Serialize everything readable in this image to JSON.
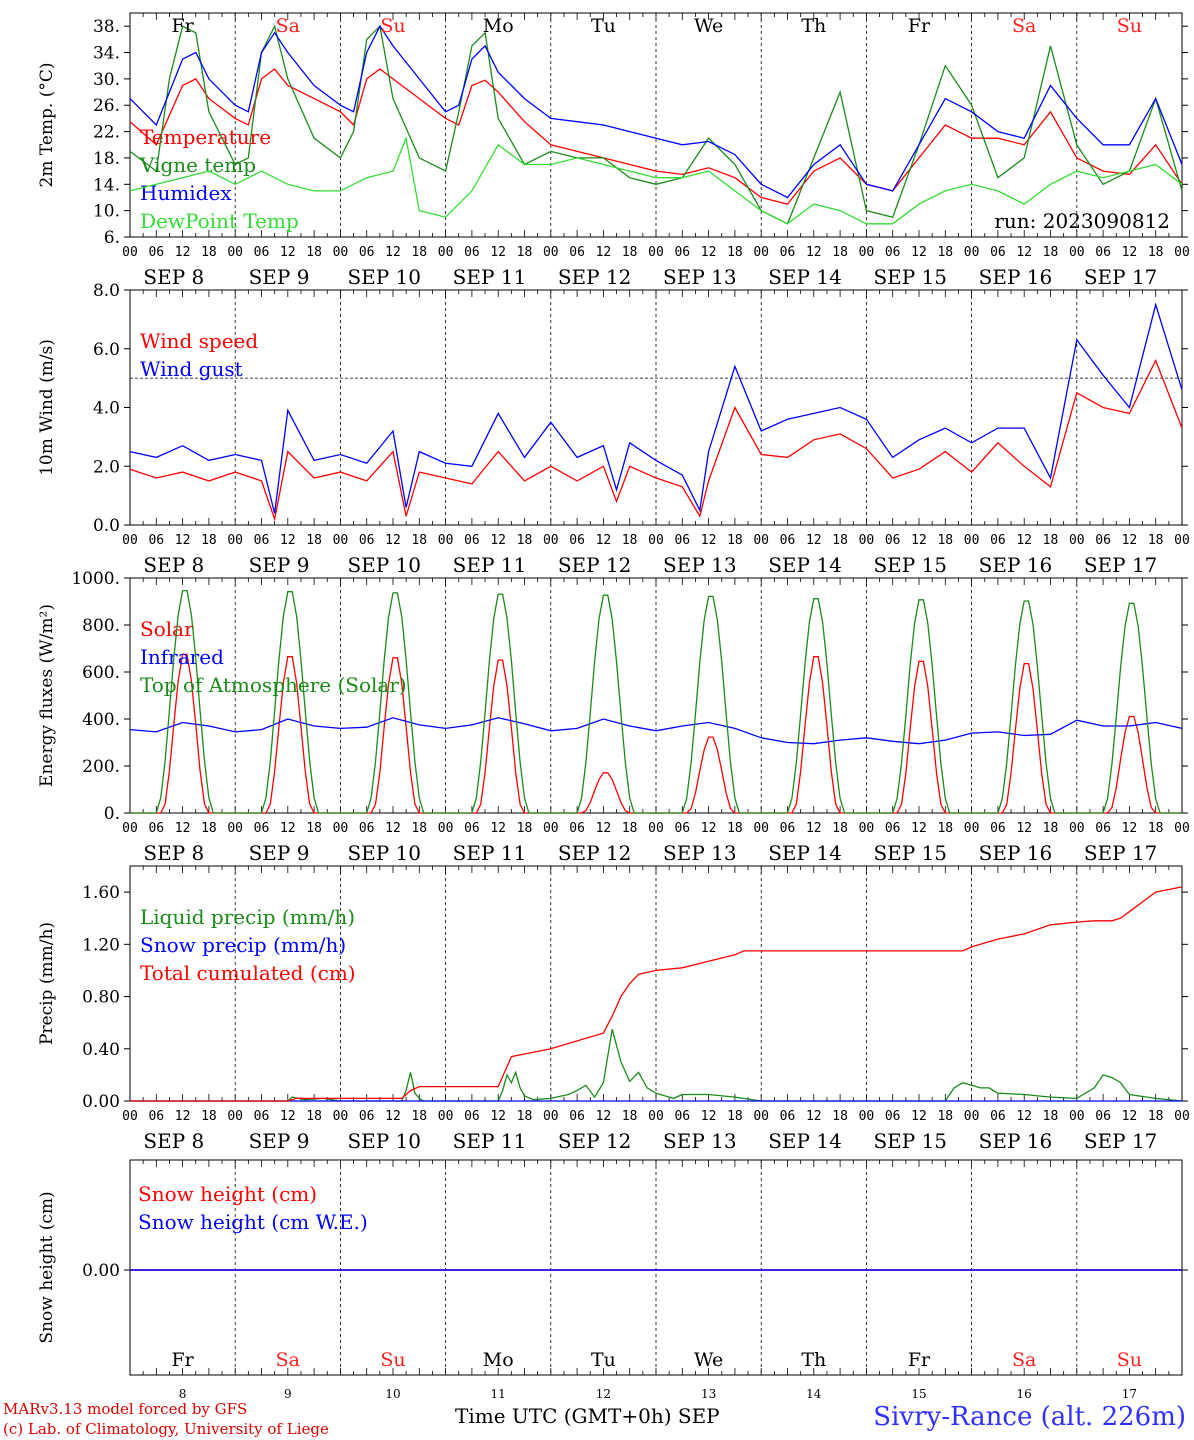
{
  "run_label": "run: 2023090812",
  "hour_ticks": [
    "00",
    "06",
    "12",
    "18"
  ],
  "final_tick": "00",
  "dates": [
    "SEP  8",
    "SEP  9",
    "SEP 10",
    "SEP 11",
    "SEP 12",
    "SEP 13",
    "SEP 14",
    "SEP 15",
    "SEP 16",
    "SEP 17"
  ],
  "weekdays": [
    "Fr",
    "Sa",
    "Su",
    "Mo",
    "Tu",
    "We",
    "Th",
    "Fr",
    "Sa",
    "Su"
  ],
  "weekend_color": "#ff2020",
  "weekday_color": "#000000",
  "day_numbers": [
    "8",
    "9",
    "10",
    "11",
    "12",
    "13",
    "14",
    "15",
    "16",
    "17"
  ],
  "footer": {
    "credit1": "MARv3.13 model forced by GFS",
    "credit2": "(c) Lab. of Climatology, University of Liege",
    "axis_title": "Time UTC (GMT+0h) SEP",
    "site": "Sivry-Rance (alt. 226m)"
  },
  "chart_data": [
    {
      "type": "line",
      "ylabel": "2m Temp. (°C)",
      "ylim": [
        6,
        40
      ],
      "yticks": [
        "6.",
        "10.",
        "14.",
        "18.",
        "22.",
        "26.",
        "30.",
        "34.",
        "38."
      ],
      "x_unit": "hours since SEP 8 00 UTC",
      "series": [
        {
          "name": "Temperature",
          "color": "#ff0000",
          "x": [
            0,
            6,
            12,
            15,
            18,
            24,
            27,
            30,
            33,
            36,
            42,
            48,
            51,
            54,
            57,
            60,
            66,
            72,
            75,
            78,
            81,
            84,
            90,
            96,
            102,
            108,
            114,
            120,
            126,
            132,
            138,
            144,
            150,
            156,
            162,
            168,
            174,
            180,
            186,
            192,
            198,
            204,
            210,
            216,
            222,
            228,
            234,
            240
          ],
          "y": [
            23.5,
            20,
            29,
            30,
            27,
            24,
            23,
            30,
            31.5,
            29,
            27,
            25,
            23,
            30,
            31.5,
            30,
            27,
            24,
            23,
            29,
            29.8,
            28,
            23.5,
            20,
            19,
            18,
            17,
            16,
            15.5,
            16.5,
            15,
            12,
            11,
            16,
            18,
            14,
            13,
            18,
            23,
            21,
            21,
            20,
            25,
            18,
            16,
            15.5,
            20,
            14
          ]
        },
        {
          "name": "Vigne temp",
          "color": "#1a8a1a",
          "x": [
            0,
            6,
            9,
            12,
            15,
            18,
            24,
            27,
            30,
            33,
            36,
            42,
            48,
            51,
            54,
            57,
            60,
            66,
            72,
            75,
            78,
            81,
            84,
            90,
            96,
            102,
            108,
            114,
            120,
            126,
            132,
            138,
            144,
            150,
            156,
            162,
            168,
            174,
            180,
            186,
            192,
            198,
            204,
            210,
            216,
            222,
            228,
            234,
            240
          ],
          "y": [
            19,
            16,
            30,
            38,
            37,
            25,
            17,
            18,
            34,
            38,
            30,
            21,
            18,
            22,
            36,
            38,
            27,
            18,
            16,
            25,
            35,
            37,
            24,
            17,
            19,
            18,
            18,
            15,
            14,
            15,
            21,
            17,
            10,
            8,
            18,
            28,
            10,
            9,
            20,
            32,
            26,
            15,
            18,
            35,
            20,
            14,
            16,
            27,
            13
          ]
        },
        {
          "name": "Humidex",
          "color": "#0000ff",
          "x": [
            0,
            6,
            12,
            15,
            18,
            24,
            27,
            30,
            33,
            36,
            42,
            48,
            51,
            54,
            57,
            60,
            66,
            72,
            75,
            78,
            81,
            84,
            90,
            96,
            102,
            108,
            114,
            120,
            126,
            132,
            138,
            144,
            150,
            156,
            162,
            168,
            174,
            180,
            186,
            192,
            198,
            204,
            210,
            216,
            222,
            228,
            234,
            240
          ],
          "y": [
            27,
            23,
            33,
            34,
            30,
            26,
            25,
            34,
            37,
            34,
            29,
            26,
            25,
            34,
            38,
            35,
            30,
            25,
            26,
            33,
            35,
            31,
            27,
            24,
            23.5,
            23,
            22,
            21,
            20,
            20.5,
            18.5,
            14,
            12,
            17,
            20,
            14,
            13,
            20,
            27,
            25,
            22,
            21,
            29,
            24,
            20,
            20,
            27,
            17
          ]
        },
        {
          "name": "DewPoint Temp",
          "color": "#33dd33",
          "x": [
            0,
            6,
            12,
            18,
            24,
            30,
            36,
            42,
            48,
            54,
            60,
            63,
            66,
            72,
            78,
            84,
            90,
            96,
            102,
            108,
            114,
            120,
            126,
            132,
            138,
            144,
            150,
            156,
            162,
            168,
            174,
            180,
            186,
            192,
            198,
            204,
            210,
            216,
            222,
            228,
            234,
            240
          ],
          "y": [
            13,
            14,
            15,
            16,
            14,
            16,
            14,
            13,
            13,
            15,
            16,
            21,
            10,
            9,
            13,
            20,
            17,
            17,
            18,
            17,
            16,
            15,
            15,
            16,
            13,
            10,
            8,
            11,
            10,
            8,
            8,
            11,
            13,
            14,
            13,
            11,
            14,
            16,
            15,
            16,
            17,
            14
          ]
        }
      ]
    },
    {
      "type": "line",
      "ylabel": "10m Wind (m/s)",
      "ylim": [
        0,
        8
      ],
      "yticks": [
        "0.0",
        "2.0",
        "4.0",
        "6.0",
        "8.0"
      ],
      "reference_line": 5,
      "series": [
        {
          "name": "Wind speed",
          "color": "#ff0000",
          "x": [
            0,
            6,
            12,
            18,
            24,
            30,
            33,
            36,
            42,
            48,
            54,
            60,
            63,
            66,
            72,
            78,
            84,
            90,
            96,
            102,
            108,
            111,
            114,
            120,
            126,
            130,
            132,
            138,
            144,
            150,
            156,
            162,
            168,
            174,
            180,
            186,
            192,
            198,
            204,
            210,
            216,
            222,
            228,
            234,
            240
          ],
          "y": [
            1.9,
            1.6,
            1.8,
            1.5,
            1.8,
            1.5,
            0.2,
            2.5,
            1.6,
            1.8,
            1.5,
            2.5,
            0.3,
            1.8,
            1.6,
            1.4,
            2.5,
            1.5,
            2,
            1.5,
            2,
            0.8,
            2,
            1.6,
            1.3,
            0.3,
            1.5,
            4,
            2.4,
            2.3,
            2.9,
            3.1,
            2.6,
            1.6,
            1.9,
            2.5,
            1.8,
            2.8,
            2,
            1.3,
            4.5,
            4,
            3.8,
            5.6,
            3.3
          ]
        },
        {
          "name": "Wind gust",
          "color": "#0000ff",
          "x": [
            0,
            6,
            12,
            18,
            24,
            30,
            33,
            36,
            42,
            48,
            54,
            60,
            63,
            66,
            72,
            78,
            84,
            90,
            96,
            102,
            108,
            111,
            114,
            120,
            126,
            130,
            132,
            138,
            144,
            150,
            156,
            162,
            168,
            174,
            180,
            186,
            192,
            198,
            204,
            210,
            216,
            222,
            228,
            234,
            240
          ],
          "y": [
            2.5,
            2.3,
            2.7,
            2.2,
            2.4,
            2.2,
            0.4,
            3.9,
            2.2,
            2.4,
            2.1,
            3.2,
            0.6,
            2.5,
            2.1,
            2,
            3.8,
            2.3,
            3.5,
            2.3,
            2.7,
            1.2,
            2.8,
            2.2,
            1.7,
            0.5,
            2.5,
            5.4,
            3.2,
            3.6,
            3.8,
            4,
            3.6,
            2.3,
            2.9,
            3.3,
            2.8,
            3.3,
            3.3,
            1.6,
            6.3,
            5.1,
            4,
            7.5,
            4.6
          ]
        }
      ]
    },
    {
      "type": "line",
      "ylabel": "Energy fluxes (W/m²)",
      "ylim": [
        0,
        1000
      ],
      "yticks": [
        "0.",
        "200.",
        "400.",
        "600.",
        "800.",
        "1000."
      ],
      "series": [
        {
          "name": "Solar",
          "color": "#ff0000",
          "peaks": [
            690,
            680,
            675,
            665,
            175,
            330,
            680,
            660,
            650,
            420
          ]
        },
        {
          "name": "Infrared",
          "color": "#0000ff",
          "x": [
            0,
            6,
            12,
            18,
            24,
            30,
            36,
            42,
            48,
            54,
            60,
            66,
            72,
            78,
            84,
            90,
            96,
            102,
            108,
            114,
            120,
            126,
            132,
            138,
            144,
            150,
            156,
            162,
            168,
            174,
            180,
            186,
            192,
            198,
            204,
            210,
            216,
            222,
            228,
            234,
            240
          ],
          "y": [
            355,
            345,
            385,
            370,
            345,
            355,
            400,
            370,
            360,
            365,
            405,
            375,
            360,
            375,
            405,
            380,
            350,
            360,
            400,
            370,
            350,
            370,
            385,
            360,
            320,
            300,
            295,
            310,
            320,
            305,
            295,
            310,
            340,
            345,
            330,
            335,
            395,
            370,
            370,
            385,
            360
          ]
        },
        {
          "name": "Top of Atmosphere (Solar)",
          "color": "#1a8a1a",
          "peaks": [
            960,
            955,
            950,
            945,
            940,
            935,
            925,
            920,
            915,
            905
          ]
        }
      ]
    },
    {
      "type": "line",
      "ylabel": "Precip (mm/h)",
      "ylim": [
        0,
        1.8
      ],
      "yticks": [
        "0.00",
        "0.40",
        "0.80",
        "1.20",
        "1.60"
      ],
      "series": [
        {
          "name": "Liquid precip (mm/h)",
          "color": "#1a8a1a",
          "x": [
            0,
            36,
            37,
            40,
            44,
            48,
            62,
            63,
            64,
            65,
            66,
            67,
            68,
            84,
            85,
            86,
            87,
            88,
            89,
            90,
            92,
            96,
            100,
            102,
            104,
            106,
            108,
            110,
            112,
            114,
            116,
            118,
            120,
            124,
            126,
            132,
            138,
            144,
            186,
            188,
            190,
            192,
            194,
            196,
            198,
            204,
            210,
            216,
            220,
            222,
            224,
            226,
            228,
            234,
            240
          ],
          "y": [
            0,
            0,
            0.03,
            0.01,
            0.02,
            0,
            0,
            0.08,
            0.22,
            0.06,
            0.02,
            0,
            0,
            0,
            0.08,
            0.2,
            0.14,
            0.22,
            0.1,
            0.04,
            0.01,
            0.02,
            0.05,
            0.08,
            0.12,
            0.03,
            0.14,
            0.55,
            0.3,
            0.15,
            0.22,
            0.1,
            0.06,
            0.02,
            0.05,
            0.05,
            0.03,
            0,
            0,
            0.1,
            0.14,
            0.12,
            0.1,
            0.1,
            0.06,
            0.05,
            0.03,
            0.02,
            0.1,
            0.2,
            0.18,
            0.14,
            0.05,
            0.02,
            0
          ]
        },
        {
          "name": "Snow precip (mm/h)",
          "color": "#0000ff",
          "x": [
            0,
            240
          ],
          "y": [
            0,
            0
          ]
        },
        {
          "name": "Total cumulated (cm)",
          "color": "#ff0000",
          "x": [
            0,
            36,
            38,
            62,
            64,
            66,
            84,
            87,
            90,
            96,
            102,
            108,
            110,
            112,
            114,
            116,
            120,
            126,
            132,
            138,
            140,
            144,
            186,
            190,
            192,
            198,
            204,
            210,
            216,
            220,
            222,
            224,
            226,
            228,
            234,
            240
          ],
          "y": [
            0,
            0,
            0.02,
            0.02,
            0.08,
            0.11,
            0.11,
            0.34,
            0.36,
            0.4,
            0.46,
            0.52,
            0.65,
            0.8,
            0.9,
            0.97,
            1.0,
            1.02,
            1.07,
            1.12,
            1.15,
            1.15,
            1.15,
            1.15,
            1.18,
            1.24,
            1.28,
            1.35,
            1.37,
            1.38,
            1.38,
            1.38,
            1.4,
            1.45,
            1.6,
            1.64
          ]
        }
      ]
    },
    {
      "type": "line",
      "ylabel": "Snow height (cm)",
      "yticks": [
        "0.00"
      ],
      "series": [
        {
          "name": "Snow height (cm)",
          "color": "#ff0000",
          "x": [
            0,
            240
          ],
          "y": [
            0,
            0
          ]
        },
        {
          "name": "Snow height (cm W.E.)",
          "color": "#0000ff",
          "x": [
            0,
            240
          ],
          "y": [
            0,
            0
          ]
        }
      ]
    }
  ]
}
